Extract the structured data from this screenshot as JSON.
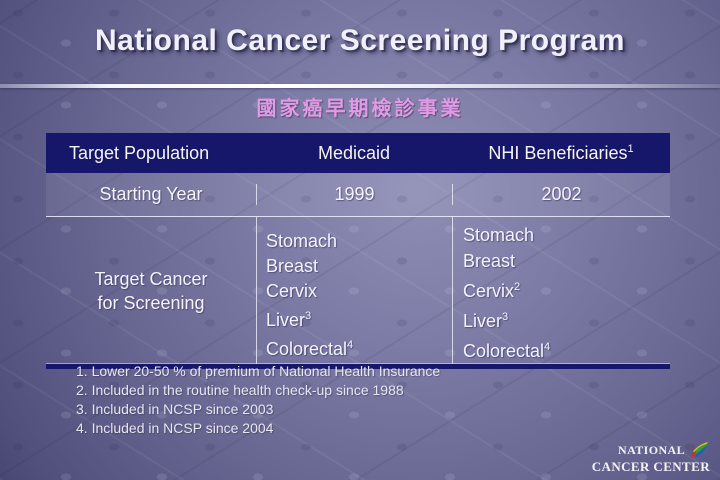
{
  "slide": {
    "title": "National Cancer Screening Program",
    "subtitle": "國家癌早期檢診事業"
  },
  "table": {
    "header": {
      "col1": "Target Population",
      "col2": "Medicaid",
      "col3_label": "NHI Beneficiaries",
      "col3_sup": "1"
    },
    "starting_year": {
      "label": "Starting Year",
      "medicaid": "1999",
      "nhi": "2002"
    },
    "target_cancer": {
      "label_line1": "Target Cancer",
      "label_line2": "for Screening",
      "medicaid_cancers": [
        {
          "name": "Stomach",
          "sup": ""
        },
        {
          "name": "Breast",
          "sup": ""
        },
        {
          "name": "Cervix",
          "sup": ""
        },
        {
          "name": "Liver",
          "sup": "3"
        },
        {
          "name": "Colorectal",
          "sup": "4"
        }
      ],
      "nhi_cancers": [
        {
          "name": "Stomach",
          "sup": ""
        },
        {
          "name": "Breast",
          "sup": ""
        },
        {
          "name": "Cervix",
          "sup": "2"
        },
        {
          "name": "Liver",
          "sup": "3"
        },
        {
          "name": "Colorectal",
          "sup": "4"
        }
      ]
    }
  },
  "footnotes": [
    "1. Lower 20-50 % of premium of National Health Insurance",
    "2. Included in the routine health check-up since 1988",
    "3. Included in NCSP since 2003",
    "4. Included in NCSP since 2004"
  ],
  "logo": {
    "line1": "NATIONAL",
    "line2": "CANCER CENTER"
  },
  "colors": {
    "header_navy": "#16166b",
    "subtitle_pink": "#e39ae6",
    "background_slate": "#75749d",
    "title_white": "#f1effa",
    "logo_leaf_yellow": "#f0c000",
    "logo_leaf_green": "#2e9e3e",
    "logo_leaf_blue": "#1f5fc0",
    "logo_leaf_red": "#d03020"
  }
}
